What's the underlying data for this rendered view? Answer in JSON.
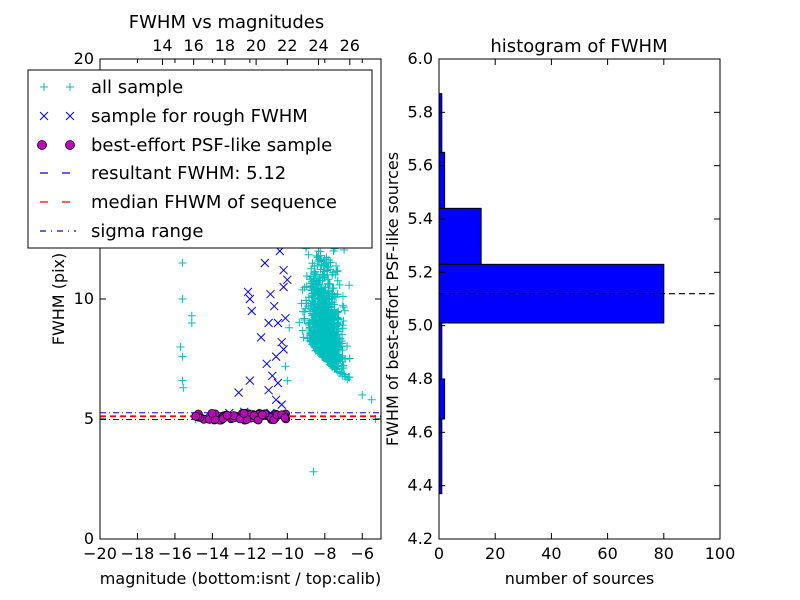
{
  "chart_data": [
    {
      "type": "scatter",
      "title": "FWHM vs magnitudes",
      "xlabel": "magnitude (bottom:isnt / top:calib)",
      "ylabel": "FWHM (pix)",
      "xlim": [
        -20,
        -5
      ],
      "ylim": [
        0,
        20
      ],
      "x_ticks": [
        -20,
        -18,
        -16,
        -14,
        -12,
        -10,
        -8,
        -6
      ],
      "x_tick_labels": [
        "−20",
        "−18",
        "−16",
        "−14",
        "−12",
        "−10",
        "−8",
        "−6"
      ],
      "y_ticks": [
        0,
        5,
        10,
        20
      ],
      "y_tick_labels": [
        "0",
        "5",
        "10",
        "20"
      ],
      "top_axis": {
        "lim": [
          10,
          28
        ],
        "ticks": [
          14,
          16,
          18,
          20,
          22,
          24,
          26
        ],
        "tick_labels": [
          "14",
          "16",
          "18",
          "20",
          "22",
          "24",
          "26"
        ]
      },
      "legend_position": "upper-left",
      "series": [
        {
          "name": "all sample",
          "marker": "+",
          "color": "#00bfbf",
          "points": [
            [
              -15.6,
              11.5
            ],
            [
              -15.6,
              10.0
            ],
            [
              -15.7,
              8.0
            ],
            [
              -15.6,
              7.6
            ],
            [
              -15.6,
              6.6
            ],
            [
              -15.55,
              6.3
            ],
            [
              -15.1,
              9.3
            ],
            [
              -15.1,
              9.0
            ],
            [
              -14.9,
              5.0
            ],
            [
              -14.3,
              5.05
            ],
            [
              -13.5,
              4.95
            ],
            [
              -10.5,
              14.0
            ],
            [
              -10.3,
              16.3
            ],
            [
              -10.1,
              7.2
            ],
            [
              -10.0,
              6.6
            ],
            [
              -9.9,
              8.8
            ],
            [
              -8.6,
              2.8
            ],
            [
              -6.0,
              6.0
            ],
            [
              -5.5,
              5.8
            ],
            [
              -5.3,
              5.0
            ]
          ],
          "dense_cloud": {
            "x_range": [
              -10.4,
              -5.8
            ],
            "y_range": [
              3.5,
              20
            ],
            "center": [
              -8,
              7
            ],
            "count": 900
          }
        },
        {
          "name": "sample for rough FWHM",
          "marker": "x",
          "color": "#0000ff",
          "points": [
            [
              -12.6,
              6.1
            ],
            [
              -12.1,
              10.3
            ],
            [
              -12.0,
              10.0
            ],
            [
              -11.9,
              9.5
            ],
            [
              -11.5,
              12.8
            ],
            [
              -11.2,
              11.5
            ],
            [
              -11.0,
              9.0
            ],
            [
              -10.9,
              10.2
            ],
            [
              -10.7,
              9.7
            ],
            [
              -10.5,
              9.0
            ],
            [
              -10.3,
              8.2
            ],
            [
              -10.2,
              11.2
            ],
            [
              -11.4,
              8.4
            ],
            [
              -11.1,
              7.3
            ],
            [
              -10.8,
              6.8
            ],
            [
              -10.6,
              5.8
            ],
            [
              -12.8,
              13.5
            ],
            [
              -11.8,
              13.1
            ],
            [
              -11.3,
              13.3
            ],
            [
              -10.4,
              12.0
            ],
            [
              -10.2,
              10.5
            ],
            [
              -10.0,
              10.8
            ],
            [
              -10.1,
              9.2
            ],
            [
              -10.6,
              7.6
            ],
            [
              -11.0,
              6.2
            ],
            [
              -12.3,
              5.3
            ],
            [
              -13.1,
              5.25
            ],
            [
              -14.4,
              5.1
            ],
            [
              -10.9,
              5.25
            ],
            [
              -10.3,
              5.6
            ],
            [
              -13.5,
              12.8
            ],
            [
              -12.6,
              12.9
            ],
            [
              -10.2,
              7.9
            ],
            [
              -10.5,
              6.5
            ],
            [
              -12.0,
              6.6
            ]
          ]
        },
        {
          "name": "best-effort PSF-like sample",
          "marker": "o",
          "color": "#bf00bf",
          "edge": "#000000",
          "x_range": [
            -14.9,
            -10.0
          ],
          "y_range": [
            4.95,
            5.25
          ],
          "count": 70
        }
      ],
      "lines": [
        {
          "name": "resultant FWHM: 5.12",
          "value": 5.12,
          "color": "#0000ff",
          "style": "dashed"
        },
        {
          "name": "median FHWM of sequence",
          "value": 5.1,
          "color": "#ff0000",
          "style": "dashed"
        },
        {
          "name": "sigma range",
          "values": [
            4.98,
            5.26
          ],
          "color": "#0000ff",
          "style": "dash-dot"
        }
      ]
    },
    {
      "type": "bar",
      "orientation": "horizontal",
      "title": "histogram of FWHM",
      "xlabel": "number of sources",
      "ylabel": "FWHM of best-effort PSF-like sources",
      "xlim": [
        0,
        100
      ],
      "ylim": [
        4.2,
        6.0
      ],
      "x_ticks": [
        0,
        20,
        40,
        60,
        80,
        100
      ],
      "y_ticks": [
        4.2,
        4.4,
        4.6,
        4.8,
        5.0,
        5.2,
        5.4,
        5.6,
        5.8,
        6.0
      ],
      "y_tick_labels": [
        "4.2",
        "4.4",
        "4.6",
        "4.8",
        "5.0",
        "5.2",
        "5.4",
        "5.6",
        "5.8",
        "6.0"
      ],
      "color": "#0000ff",
      "bins": [
        {
          "from": 4.37,
          "to": 4.65,
          "count": 1
        },
        {
          "from": 4.65,
          "to": 4.8,
          "count": 2
        },
        {
          "from": 4.8,
          "to": 5.01,
          "count": 1
        },
        {
          "from": 5.01,
          "to": 5.23,
          "count": 80
        },
        {
          "from": 5.23,
          "to": 5.44,
          "count": 15
        },
        {
          "from": 5.44,
          "to": 5.65,
          "count": 2
        },
        {
          "from": 5.65,
          "to": 5.87,
          "count": 1
        }
      ],
      "reference_line": {
        "value": 5.12,
        "color": "#000000",
        "style": "dashed",
        "x_extent": [
          0,
          98
        ]
      }
    }
  ]
}
